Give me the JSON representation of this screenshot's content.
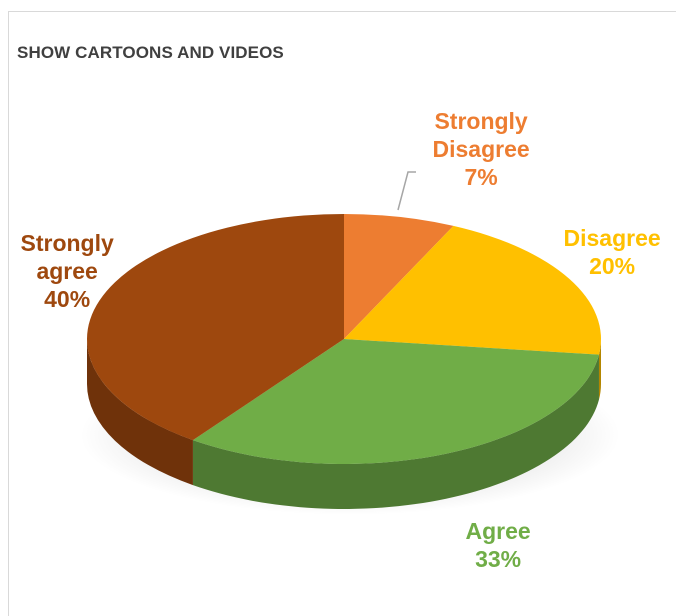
{
  "chart_data": {
    "type": "pie",
    "title": "SHOW CARTOONS AND VIDEOS",
    "slices": [
      {
        "label": "Strongly Disagree",
        "label_lines": [
          "Strongly",
          "Disagree"
        ],
        "value": 7,
        "value_text": "7%",
        "color": "#ed7d31",
        "label_color": "#ed7d31"
      },
      {
        "label": "Disagree",
        "label_lines": [
          "Disagree"
        ],
        "value": 20,
        "value_text": "20%",
        "color": "#ffc000",
        "label_color": "#ffc000"
      },
      {
        "label": "Agree",
        "label_lines": [
          "Agree"
        ],
        "value": 33,
        "value_text": "33%",
        "color": "#70ad47",
        "label_color": "#70ad47"
      },
      {
        "label": "Strongly agree",
        "label_lines": [
          "Strongly",
          "agree"
        ],
        "value": 40,
        "value_text": "40%",
        "color": "#9e480e",
        "label_color": "#9e480e"
      }
    ],
    "style": "3d-pie",
    "legend": "none"
  },
  "colors": {
    "title": "#404040",
    "border": "#d9d9d9",
    "leader_line": "#a6a6a6"
  }
}
